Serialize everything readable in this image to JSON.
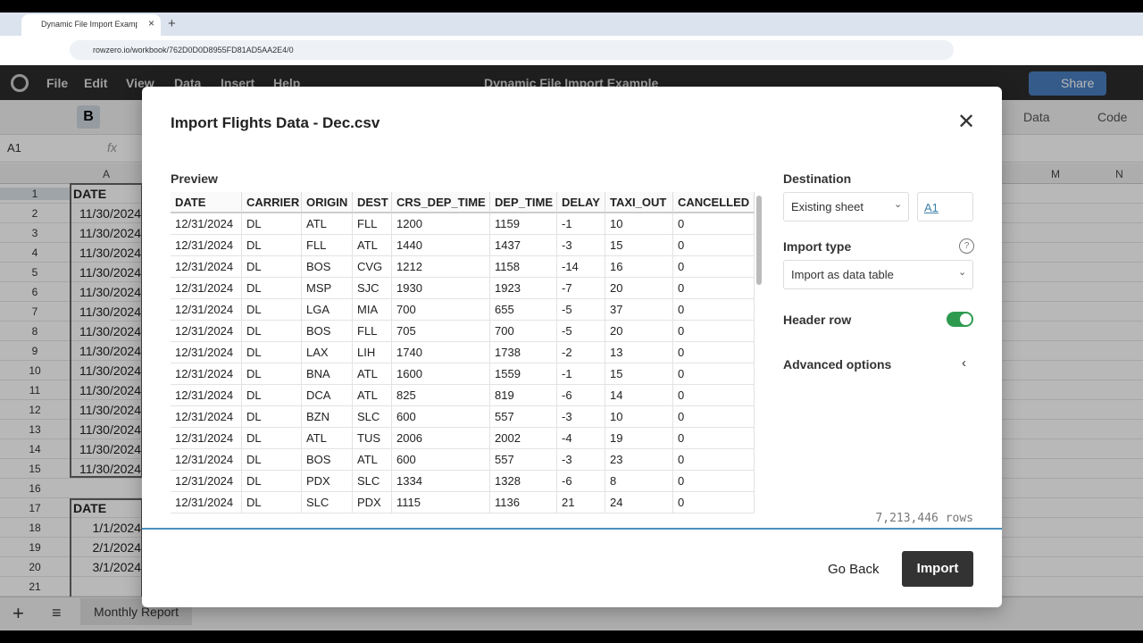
{
  "browser": {
    "tab_title": "Dynamic File Import Example -",
    "url": "rowzero.io/workbook/762D0D0D8955FD81AD5AA2E4/0"
  },
  "app": {
    "menu": [
      "File",
      "Edit",
      "View",
      "Data",
      "Insert",
      "Help"
    ],
    "doc_title": "Dynamic File Import Example",
    "share": "Share",
    "toolbar": [
      "Data",
      "Code"
    ],
    "cell_ref": "A1",
    "fx": "fx"
  },
  "sheet": {
    "columns": [
      "A",
      "M",
      "N"
    ],
    "rows": [
      "1",
      "2",
      "3",
      "4",
      "5",
      "6",
      "7",
      "8",
      "9",
      "10",
      "11",
      "12",
      "13",
      "14",
      "15",
      "16",
      "17",
      "18",
      "19",
      "20",
      "21"
    ],
    "cells": [
      "DATE",
      "11/30/2024",
      "11/30/2024",
      "11/30/2024",
      "11/30/2024",
      "11/30/2024",
      "11/30/2024",
      "11/30/2024",
      "11/30/2024",
      "11/30/2024",
      "11/30/2024",
      "11/30/2024",
      "11/30/2024",
      "11/30/2024",
      "11/30/2024",
      null,
      "DATE",
      "1/1/2024",
      "2/1/2024",
      "3/1/2024",
      null
    ],
    "tab": "Monthly Report"
  },
  "dialog": {
    "title": "Import Flights Data - Dec.csv",
    "preview_label": "Preview",
    "table": {
      "columns": [
        "DATE",
        "CARRIER",
        "ORIGIN",
        "DEST",
        "CRS_DEP_TIME",
        "DEP_TIME",
        "DELAY",
        "TAXI_OUT",
        "CANCELLED"
      ],
      "rows": [
        [
          "12/31/2024",
          "DL",
          "ATL",
          "FLL",
          "1200",
          "1159",
          "-1",
          "10",
          "0"
        ],
        [
          "12/31/2024",
          "DL",
          "FLL",
          "ATL",
          "1440",
          "1437",
          "-3",
          "15",
          "0"
        ],
        [
          "12/31/2024",
          "DL",
          "BOS",
          "CVG",
          "1212",
          "1158",
          "-14",
          "16",
          "0"
        ],
        [
          "12/31/2024",
          "DL",
          "MSP",
          "SJC",
          "1930",
          "1923",
          "-7",
          "20",
          "0"
        ],
        [
          "12/31/2024",
          "DL",
          "LGA",
          "MIA",
          "700",
          "655",
          "-5",
          "37",
          "0"
        ],
        [
          "12/31/2024",
          "DL",
          "BOS",
          "FLL",
          "705",
          "700",
          "-5",
          "20",
          "0"
        ],
        [
          "12/31/2024",
          "DL",
          "LAX",
          "LIH",
          "1740",
          "1738",
          "-2",
          "13",
          "0"
        ],
        [
          "12/31/2024",
          "DL",
          "BNA",
          "ATL",
          "1600",
          "1559",
          "-1",
          "15",
          "0"
        ],
        [
          "12/31/2024",
          "DL",
          "DCA",
          "ATL",
          "825",
          "819",
          "-6",
          "14",
          "0"
        ],
        [
          "12/31/2024",
          "DL",
          "BZN",
          "SLC",
          "600",
          "557",
          "-3",
          "10",
          "0"
        ],
        [
          "12/31/2024",
          "DL",
          "ATL",
          "TUS",
          "2006",
          "2002",
          "-4",
          "19",
          "0"
        ],
        [
          "12/31/2024",
          "DL",
          "BOS",
          "ATL",
          "600",
          "557",
          "-3",
          "23",
          "0"
        ],
        [
          "12/31/2024",
          "DL",
          "PDX",
          "SLC",
          "1334",
          "1328",
          "-6",
          "8",
          "0"
        ],
        [
          "12/31/2024",
          "DL",
          "SLC",
          "PDX",
          "1115",
          "1136",
          "21",
          "24",
          "0"
        ]
      ]
    },
    "destination_label": "Destination",
    "destination_value": "Existing sheet",
    "destination_cell": "A1",
    "import_type_label": "Import type",
    "import_type_value": "Import as data table",
    "header_row_label": "Header row",
    "advanced_label": "Advanced options",
    "row_count": "7,213,446 rows",
    "go_back": "Go Back",
    "import": "Import"
  }
}
